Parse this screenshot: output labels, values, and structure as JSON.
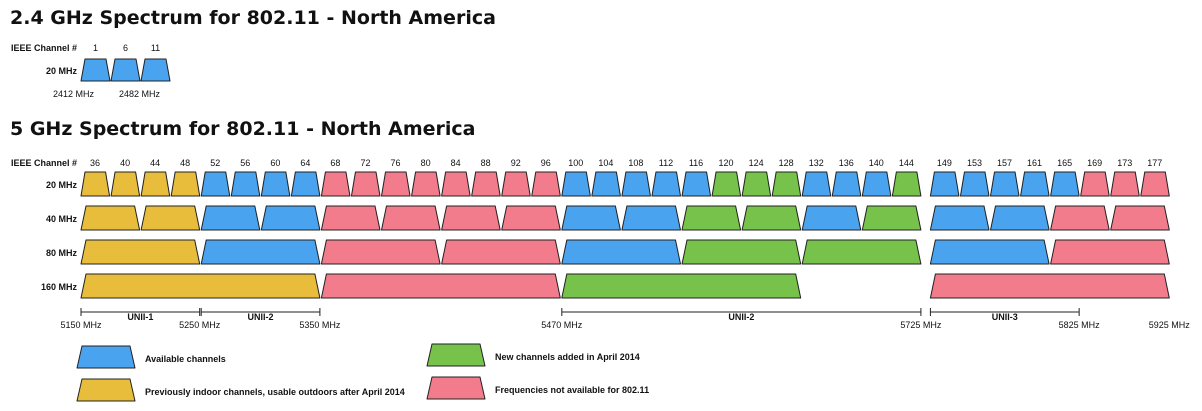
{
  "colors": {
    "available": "#4aa3ee",
    "indoor": "#e8bd3c",
    "new": "#77c24a",
    "not_available": "#f27b8c",
    "outline": "#222222"
  },
  "spectrum_24": {
    "title": "2.4 GHz Spectrum for 802.11 - North America",
    "channel_label": "IEEE Channel #",
    "row_label": "20 MHz",
    "channels": [
      "1",
      "6",
      "11"
    ],
    "channel_status": [
      "available",
      "available",
      "available"
    ],
    "freq_labels": [
      "2412 MHz",
      "2482 MHz"
    ]
  },
  "spectrum_5": {
    "title": "5 GHz Spectrum for 802.11 - North America",
    "channel_label": "IEEE Channel #",
    "channels": [
      "36",
      "40",
      "44",
      "48",
      "52",
      "56",
      "60",
      "64",
      "68",
      "72",
      "76",
      "80",
      "84",
      "88",
      "92",
      "96",
      "100",
      "104",
      "108",
      "112",
      "116",
      "120",
      "124",
      "128",
      "132",
      "136",
      "140",
      "144",
      "149",
      "153",
      "157",
      "161",
      "165",
      "169",
      "173",
      "177"
    ],
    "rows": [
      {
        "label": "20 MHz",
        "blocks": [
          {
            "ch": [
              "36"
            ],
            "status": "indoor"
          },
          {
            "ch": [
              "40"
            ],
            "status": "indoor"
          },
          {
            "ch": [
              "44"
            ],
            "status": "indoor"
          },
          {
            "ch": [
              "48"
            ],
            "status": "indoor"
          },
          {
            "ch": [
              "52"
            ],
            "status": "available"
          },
          {
            "ch": [
              "56"
            ],
            "status": "available"
          },
          {
            "ch": [
              "60"
            ],
            "status": "available"
          },
          {
            "ch": [
              "64"
            ],
            "status": "available"
          },
          {
            "ch": [
              "68"
            ],
            "status": "not_available"
          },
          {
            "ch": [
              "72"
            ],
            "status": "not_available"
          },
          {
            "ch": [
              "76"
            ],
            "status": "not_available"
          },
          {
            "ch": [
              "80"
            ],
            "status": "not_available"
          },
          {
            "ch": [
              "84"
            ],
            "status": "not_available"
          },
          {
            "ch": [
              "88"
            ],
            "status": "not_available"
          },
          {
            "ch": [
              "92"
            ],
            "status": "not_available"
          },
          {
            "ch": [
              "96"
            ],
            "status": "not_available"
          },
          {
            "ch": [
              "100"
            ],
            "status": "available"
          },
          {
            "ch": [
              "104"
            ],
            "status": "available"
          },
          {
            "ch": [
              "108"
            ],
            "status": "available"
          },
          {
            "ch": [
              "112"
            ],
            "status": "available"
          },
          {
            "ch": [
              "116"
            ],
            "status": "available"
          },
          {
            "ch": [
              "120"
            ],
            "status": "new"
          },
          {
            "ch": [
              "124"
            ],
            "status": "new"
          },
          {
            "ch": [
              "128"
            ],
            "status": "new"
          },
          {
            "ch": [
              "132"
            ],
            "status": "available"
          },
          {
            "ch": [
              "136"
            ],
            "status": "available"
          },
          {
            "ch": [
              "140"
            ],
            "status": "available"
          },
          {
            "ch": [
              "144"
            ],
            "status": "new"
          },
          {
            "ch": [
              "149"
            ],
            "status": "available"
          },
          {
            "ch": [
              "153"
            ],
            "status": "available"
          },
          {
            "ch": [
              "157"
            ],
            "status": "available"
          },
          {
            "ch": [
              "161"
            ],
            "status": "available"
          },
          {
            "ch": [
              "165"
            ],
            "status": "available"
          },
          {
            "ch": [
              "169"
            ],
            "status": "not_available"
          },
          {
            "ch": [
              "173"
            ],
            "status": "not_available"
          },
          {
            "ch": [
              "177"
            ],
            "status": "not_available"
          }
        ]
      },
      {
        "label": "40 MHz",
        "blocks": [
          {
            "ch": [
              "36",
              "40"
            ],
            "status": "indoor"
          },
          {
            "ch": [
              "44",
              "48"
            ],
            "status": "indoor"
          },
          {
            "ch": [
              "52",
              "56"
            ],
            "status": "available"
          },
          {
            "ch": [
              "60",
              "64"
            ],
            "status": "available"
          },
          {
            "ch": [
              "68",
              "72"
            ],
            "status": "not_available"
          },
          {
            "ch": [
              "76",
              "80"
            ],
            "status": "not_available"
          },
          {
            "ch": [
              "84",
              "88"
            ],
            "status": "not_available"
          },
          {
            "ch": [
              "92",
              "96"
            ],
            "status": "not_available"
          },
          {
            "ch": [
              "100",
              "104"
            ],
            "status": "available"
          },
          {
            "ch": [
              "108",
              "112"
            ],
            "status": "available"
          },
          {
            "ch": [
              "116",
              "120"
            ],
            "status": "new"
          },
          {
            "ch": [
              "124",
              "128"
            ],
            "status": "new"
          },
          {
            "ch": [
              "132",
              "136"
            ],
            "status": "available"
          },
          {
            "ch": [
              "140",
              "144"
            ],
            "status": "new"
          },
          {
            "ch": [
              "149",
              "153"
            ],
            "status": "available"
          },
          {
            "ch": [
              "157",
              "161"
            ],
            "status": "available"
          },
          {
            "ch": [
              "165",
              "169"
            ],
            "status": "not_available"
          },
          {
            "ch": [
              "173",
              "177"
            ],
            "status": "not_available"
          }
        ]
      },
      {
        "label": "80 MHz",
        "blocks": [
          {
            "ch": [
              "36",
              "40",
              "44",
              "48"
            ],
            "status": "indoor"
          },
          {
            "ch": [
              "52",
              "56",
              "60",
              "64"
            ],
            "status": "available"
          },
          {
            "ch": [
              "68",
              "72",
              "76",
              "80"
            ],
            "status": "not_available"
          },
          {
            "ch": [
              "84",
              "88",
              "92",
              "96"
            ],
            "status": "not_available"
          },
          {
            "ch": [
              "100",
              "104",
              "108",
              "112"
            ],
            "status": "available"
          },
          {
            "ch": [
              "116",
              "120",
              "124",
              "128"
            ],
            "status": "new"
          },
          {
            "ch": [
              "132",
              "136",
              "140",
              "144"
            ],
            "status": "new"
          },
          {
            "ch": [
              "149",
              "153",
              "157",
              "161"
            ],
            "status": "available"
          },
          {
            "ch": [
              "165",
              "169",
              "173",
              "177"
            ],
            "status": "not_available"
          }
        ]
      },
      {
        "label": "160 MHz",
        "blocks": [
          {
            "ch": [
              "36",
              "40",
              "44",
              "48",
              "52",
              "56",
              "60",
              "64"
            ],
            "status": "indoor"
          },
          {
            "ch": [
              "68",
              "72",
              "76",
              "80",
              "84",
              "88",
              "92",
              "96"
            ],
            "status": "not_available"
          },
          {
            "ch": [
              "100",
              "104",
              "108",
              "112",
              "116",
              "120",
              "124",
              "128"
            ],
            "status": "new"
          },
          {
            "ch": [
              "149",
              "153",
              "157",
              "161",
              "165",
              "169",
              "173",
              "177"
            ],
            "status": "not_available"
          }
        ]
      }
    ],
    "axis": {
      "bands": [
        {
          "name": "UNII-1",
          "from": "36",
          "to": "48"
        },
        {
          "name": "UNII-2",
          "from": "52",
          "to": "64"
        },
        {
          "name": "UNII-2",
          "from": "100",
          "to": "144"
        },
        {
          "name": "UNII-3",
          "from": "149",
          "to": "165"
        }
      ],
      "freq_labels": [
        {
          "text": "5150 MHz",
          "at": "36",
          "edge": "start"
        },
        {
          "text": "5250 MHz",
          "at": "48",
          "edge": "end"
        },
        {
          "text": "5350 MHz",
          "at": "64",
          "edge": "end"
        },
        {
          "text": "5470 MHz",
          "at": "100",
          "edge": "start"
        },
        {
          "text": "5725 MHz",
          "at": "144",
          "edge": "end"
        },
        {
          "text": "5825 MHz",
          "at": "165",
          "edge": "end"
        },
        {
          "text": "5925 MHz",
          "at": "177",
          "edge": "end"
        }
      ]
    }
  },
  "legend": [
    {
      "status": "available",
      "label": "Available channels"
    },
    {
      "status": "indoor",
      "label": "Previously indoor channels, usable outdoors after April 2014"
    },
    {
      "status": "new",
      "label": "New channels added in April 2014"
    },
    {
      "status": "not_available",
      "label": "Frequencies not available for 802.11"
    }
  ]
}
